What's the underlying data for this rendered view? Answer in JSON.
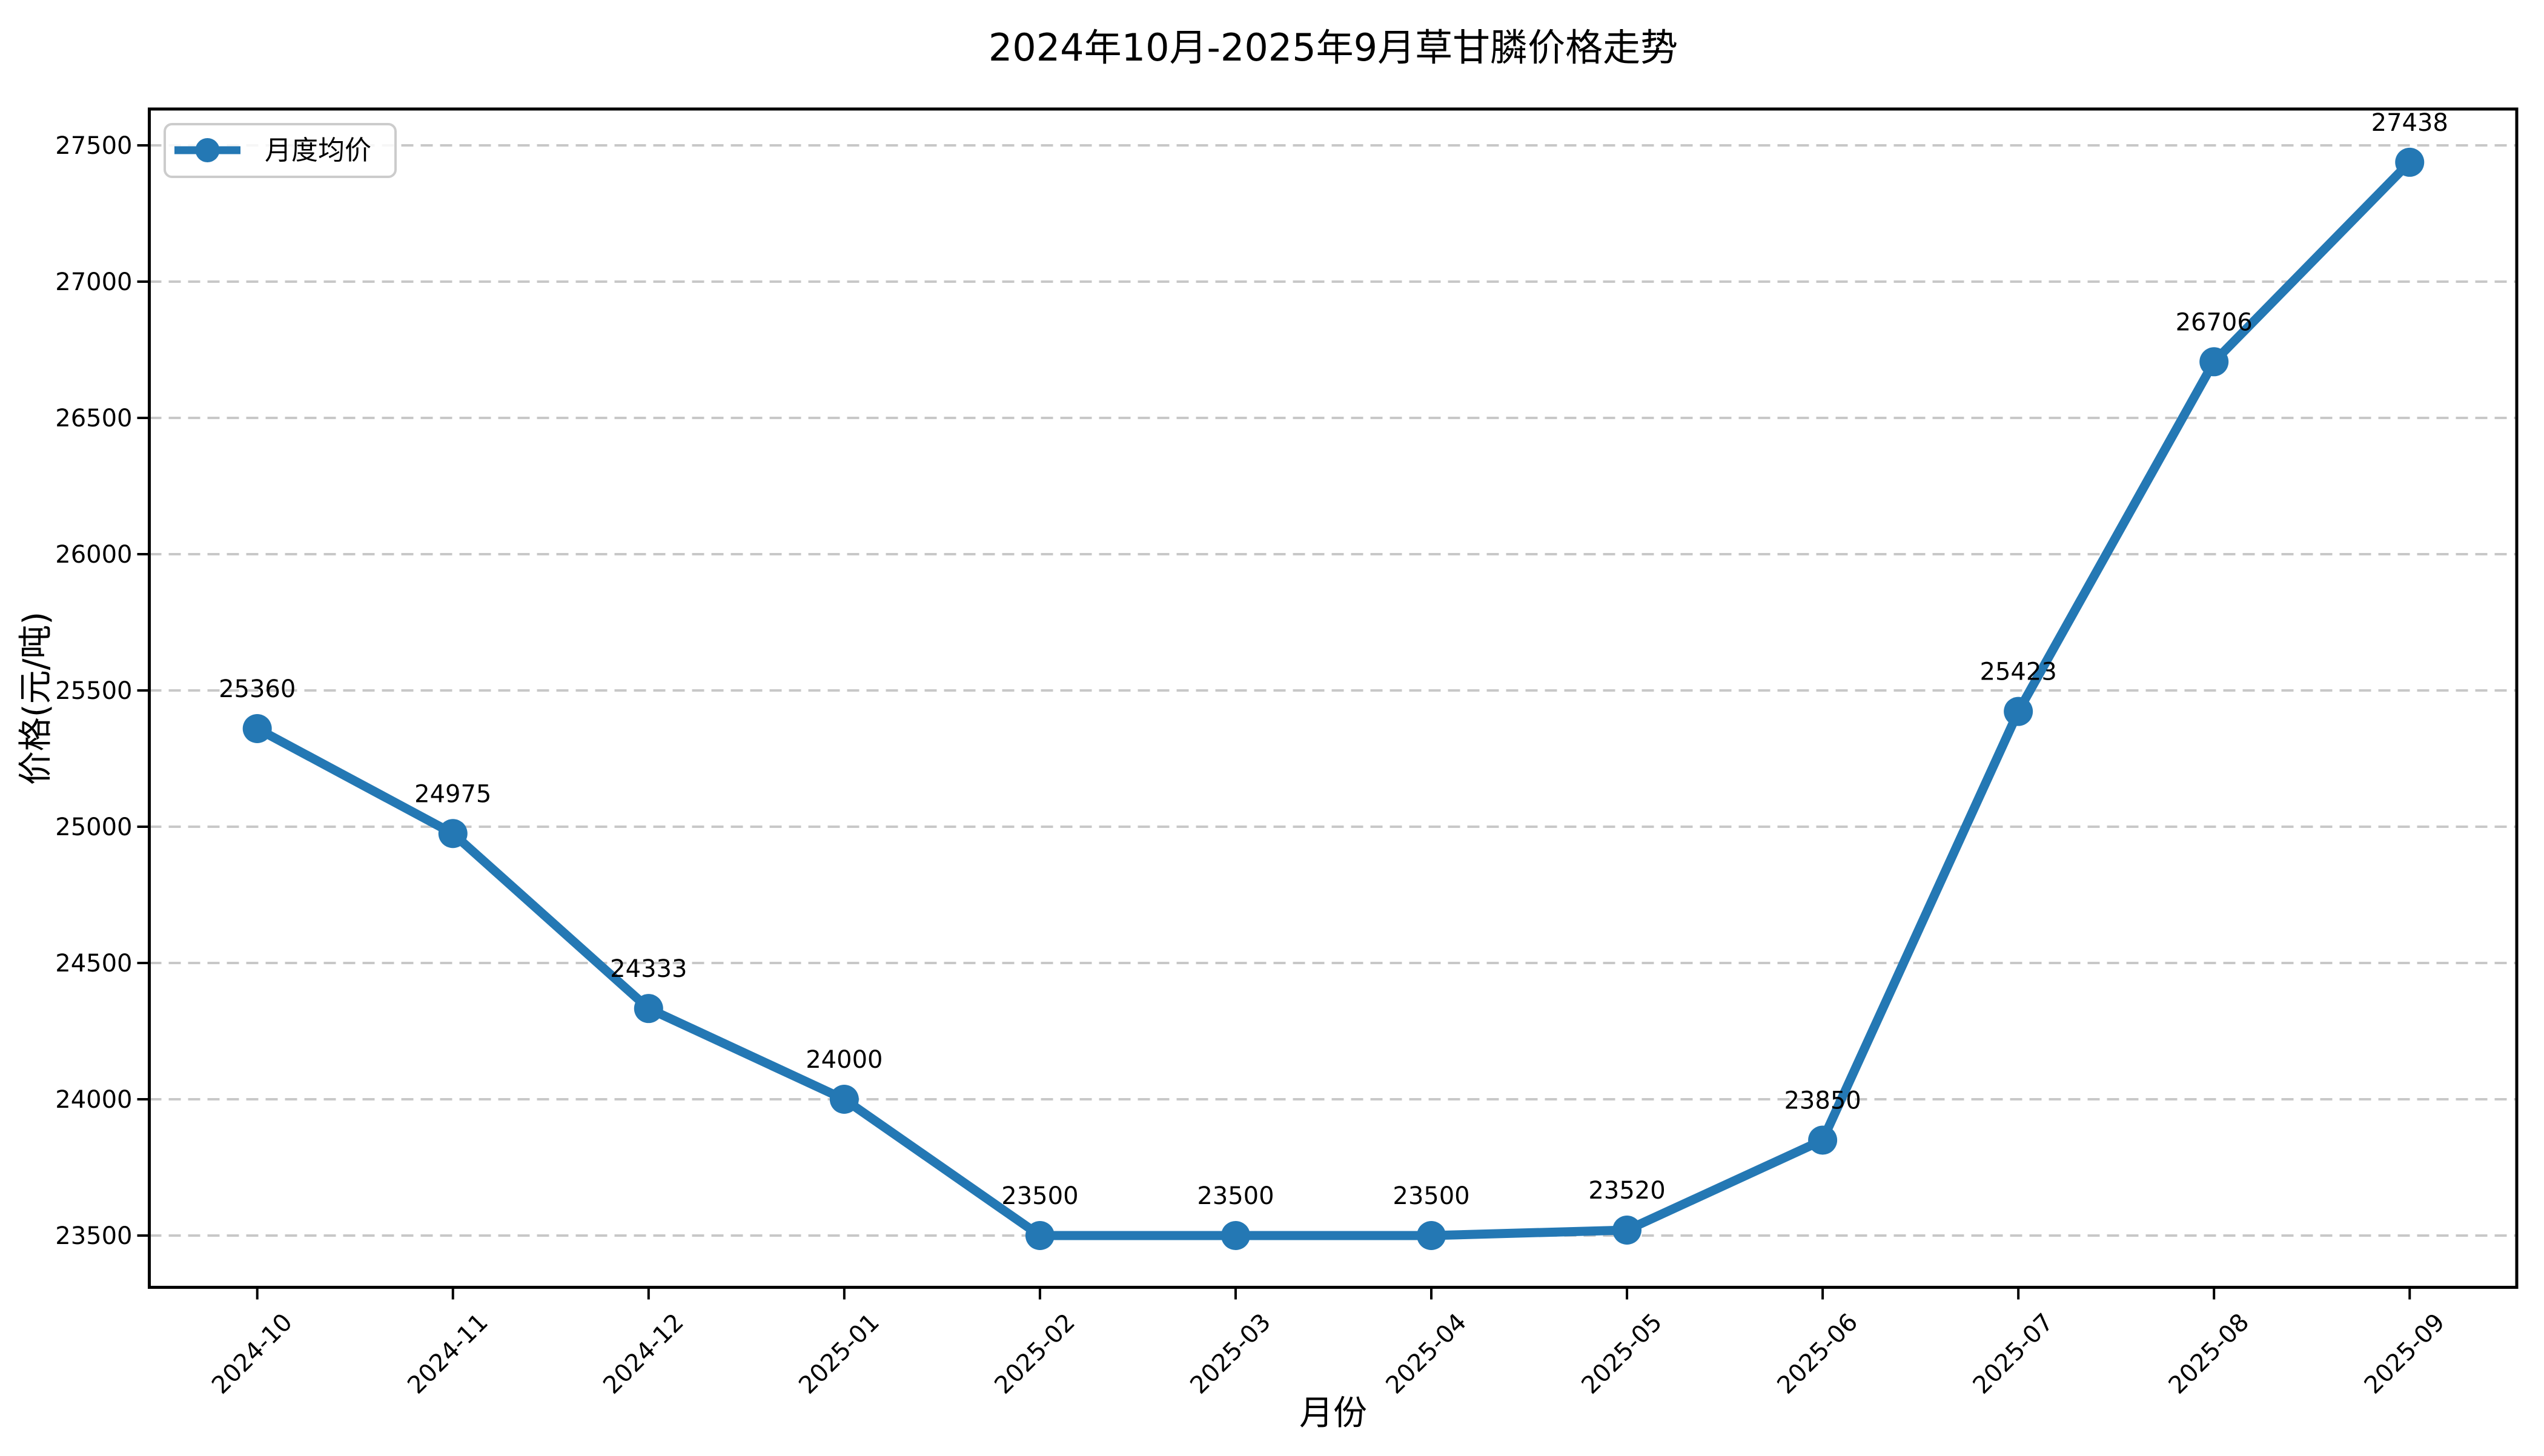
{
  "title": "2024年10月-2025年9月草甘膦价格走势",
  "chart_data": {
    "type": "line",
    "title": "2024年10月-2025年9月草甘膦价格走势",
    "xlabel": "月份",
    "ylabel": "价格(元/吨)",
    "categories": [
      "2024-10",
      "2024-11",
      "2024-12",
      "2025-01",
      "2025-02",
      "2025-03",
      "2025-04",
      "2025-05",
      "2025-06",
      "2025-07",
      "2025-08",
      "2025-09"
    ],
    "series": [
      {
        "name": "月度均价",
        "values": [
          25360,
          24975,
          24333,
          24000,
          23500,
          23500,
          23500,
          23520,
          23850,
          25423,
          26706,
          27438
        ],
        "color": "#2478b4"
      }
    ],
    "yticks": [
      23500,
      24000,
      24500,
      25000,
      25500,
      26000,
      26500,
      27000,
      27500
    ],
    "ylim": [
      23310,
      27633
    ],
    "grid": "y-dashed",
    "xtick_rotation": 45,
    "legend_position": "upper-left",
    "point_labels_shown": true
  },
  "colors": {
    "line": "#2478b4",
    "grid": "#c8c8c8",
    "spine": "#000000",
    "legend_border": "#cccccc",
    "text": "#000000",
    "background": "#ffffff"
  }
}
